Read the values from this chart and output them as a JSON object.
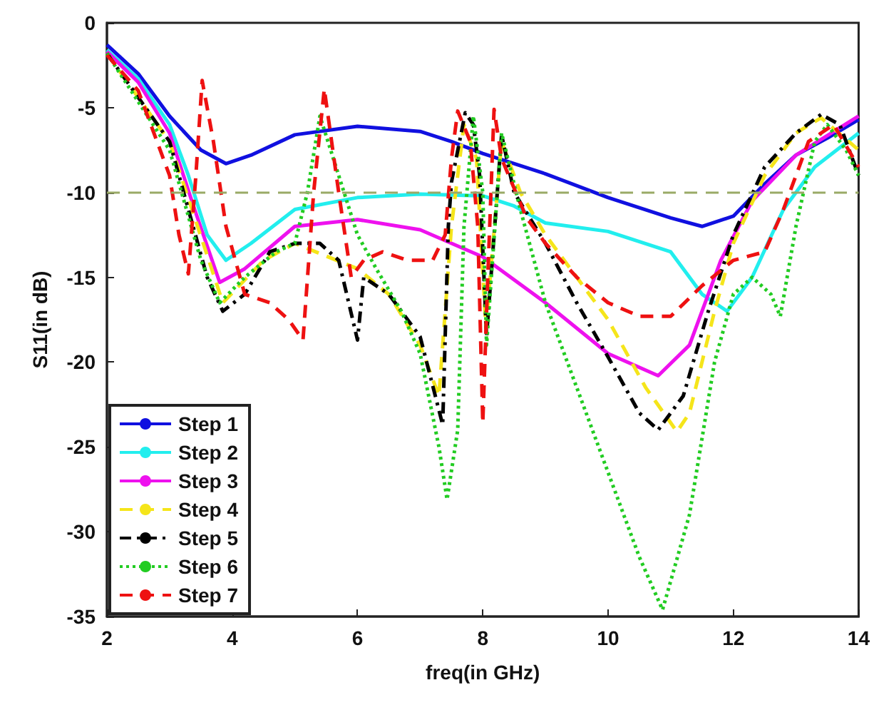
{
  "chart_data": {
    "type": "line",
    "xlabel": "freq(in GHz)",
    "ylabel": "S11(in dB)",
    "xlim": [
      2,
      14
    ],
    "xticks": [
      2,
      4,
      6,
      8,
      10,
      12,
      14
    ],
    "ylim": [
      -35,
      0
    ],
    "yticks": [
      -35,
      -30,
      -25,
      -20,
      -15,
      -10,
      -5,
      0
    ],
    "grid": false,
    "legend": "bottom left",
    "marker": "none",
    "ref_lines": [
      {
        "axis": "y",
        "value": -10,
        "color": "#9aaa66",
        "line_style": "dashed"
      }
    ],
    "series": [
      {
        "name": "Step 1",
        "color": "#1010e0",
        "line_style": "solid",
        "x": [
          2,
          2.5,
          3,
          3.5,
          3.9,
          4.3,
          5,
          6,
          7,
          7.5,
          8,
          9,
          10,
          11,
          11.5,
          12,
          12.5,
          13,
          13.5,
          14
        ],
        "values": [
          -1.3,
          -3,
          -5.5,
          -7.5,
          -8.3,
          -7.8,
          -6.6,
          -6.1,
          -6.4,
          -7,
          -7.7,
          -8.9,
          -10.3,
          -11.5,
          -12,
          -11.4,
          -9.5,
          -7.8,
          -6.8,
          -5.7
        ]
      },
      {
        "name": "Step 2",
        "color": "#22eeee",
        "line_style": "solid",
        "x": [
          2,
          2.5,
          3,
          3.3,
          3.6,
          3.9,
          4.3,
          5,
          6,
          7,
          8,
          8.5,
          9,
          10,
          11,
          11.5,
          11.9,
          12.3,
          12.8,
          13.3,
          14
        ],
        "values": [
          -1.6,
          -3.3,
          -6,
          -9,
          -12.5,
          -14,
          -13,
          -11,
          -10.3,
          -10.1,
          -10.2,
          -10.8,
          -11.8,
          -12.3,
          -13.5,
          -16,
          -17,
          -15,
          -11,
          -8.5,
          -6.5
        ]
      },
      {
        "name": "Step 3",
        "color": "#ee11ee",
        "line_style": "solid",
        "x": [
          2,
          2.5,
          3,
          3.4,
          3.8,
          4.2,
          5,
          6,
          7,
          8,
          9,
          10,
          10.8,
          11.3,
          11.8,
          12.3,
          13,
          14
        ],
        "values": [
          -1.7,
          -3.5,
          -6.5,
          -11,
          -15.3,
          -14.5,
          -12,
          -11.6,
          -12.2,
          -13.8,
          -16.5,
          -19.5,
          -20.8,
          -19,
          -14,
          -10.5,
          -7.8,
          -5.5
        ]
      },
      {
        "name": "Step 4",
        "color": "#f5e51a",
        "line_style": "dashed",
        "x": [
          2,
          3,
          3.85,
          4.5,
          5,
          6,
          6.5,
          7,
          7.3,
          7.5,
          7.7,
          7.9,
          8.05,
          8.3,
          8.6,
          9,
          10,
          10.6,
          11.1,
          11.3,
          11.7,
          12,
          12.5,
          13,
          13.4,
          14
        ],
        "values": [
          -1.8,
          -7,
          -16.5,
          -14,
          -13,
          -14.5,
          -16,
          -19,
          -22,
          -12,
          -6,
          -8,
          -18,
          -7,
          -10,
          -12.5,
          -17.5,
          -21.5,
          -24.1,
          -23,
          -17,
          -13,
          -9,
          -6.5,
          -5.6,
          -7.5
        ]
      },
      {
        "name": "Step 5",
        "color": "#000000",
        "line_style": "dashdot",
        "x": [
          2,
          3,
          3.3,
          3.6,
          3.85,
          4.2,
          4.6,
          5,
          5.4,
          5.7,
          6,
          6.1,
          6.5,
          7,
          7.36,
          7.45,
          7.5,
          7.72,
          7.85,
          7.95,
          8.06,
          8.3,
          8.5,
          9,
          9.5,
          10,
          10.5,
          10.8,
          11.2,
          11.6,
          12,
          12.5,
          13,
          13.4,
          13.7,
          14
        ],
        "values": [
          -1.8,
          -7,
          -11,
          -15,
          -17,
          -16,
          -13.5,
          -13,
          -13,
          -14,
          -18.7,
          -15,
          -16,
          -18.5,
          -23.7,
          -12,
          -9.4,
          -5.3,
          -6,
          -9,
          -18.5,
          -6.6,
          -10,
          -13,
          -16.5,
          -19.7,
          -23,
          -24,
          -22,
          -17,
          -12.5,
          -8.5,
          -6.5,
          -5.4,
          -6,
          -9
        ]
      },
      {
        "name": "Step 6",
        "color": "#22cc22",
        "line_style": "dotted",
        "x": [
          2,
          3,
          3.5,
          3.8,
          4.2,
          4.7,
          5,
          5.2,
          5.4,
          5.7,
          6,
          6.3,
          6.7,
          7,
          7.3,
          7.43,
          7.6,
          7.7,
          7.85,
          8,
          8.06,
          8.3,
          8.6,
          9,
          9.5,
          10,
          10.5,
          10.87,
          11.3,
          11.7,
          12,
          12.3,
          12.6,
          12.75,
          13,
          13.3,
          13.5,
          13.8,
          14
        ],
        "values": [
          -1.8,
          -7.5,
          -14,
          -16.5,
          -15,
          -13.5,
          -13,
          -10,
          -5.5,
          -9,
          -12.5,
          -14.5,
          -17,
          -19.5,
          -25,
          -28.1,
          -24,
          -12,
          -5.5,
          -10,
          -19,
          -6.5,
          -11,
          -16.5,
          -21.5,
          -26.5,
          -31.5,
          -34.6,
          -29,
          -20,
          -16,
          -15,
          -16,
          -17.3,
          -12,
          -7,
          -6,
          -7.5,
          -9
        ]
      },
      {
        "name": "Step 7",
        "color": "#ee1111",
        "line_style": "dashed",
        "x": [
          2,
          2.5,
          3,
          3.15,
          3.3,
          3.42,
          3.52,
          3.7,
          3.9,
          4.2,
          4.6,
          4.9,
          5.13,
          5.3,
          5.47,
          5.7,
          5.9,
          6.1,
          6.4,
          6.8,
          7.2,
          7.4,
          7.5,
          7.6,
          7.8,
          7.92,
          8.0,
          8.08,
          8.18,
          8.3,
          8.7,
          9,
          9.5,
          10,
          10.5,
          11,
          11.5,
          12,
          12.5,
          12.8,
          13.2,
          13.6,
          14
        ],
        "values": [
          -1.9,
          -4,
          -9,
          -12.5,
          -14.8,
          -9,
          -3.4,
          -7,
          -12,
          -16,
          -16.5,
          -17.5,
          -18.7,
          -10,
          -3.9,
          -10,
          -15,
          -14,
          -13.5,
          -14,
          -14,
          -12.5,
          -8,
          -5.2,
          -7,
          -12,
          -23.6,
          -15,
          -5.1,
          -8,
          -11.5,
          -13,
          -15,
          -16.5,
          -17.3,
          -17.3,
          -15.5,
          -14,
          -13.5,
          -11,
          -7,
          -6,
          -8.5
        ]
      }
    ]
  }
}
